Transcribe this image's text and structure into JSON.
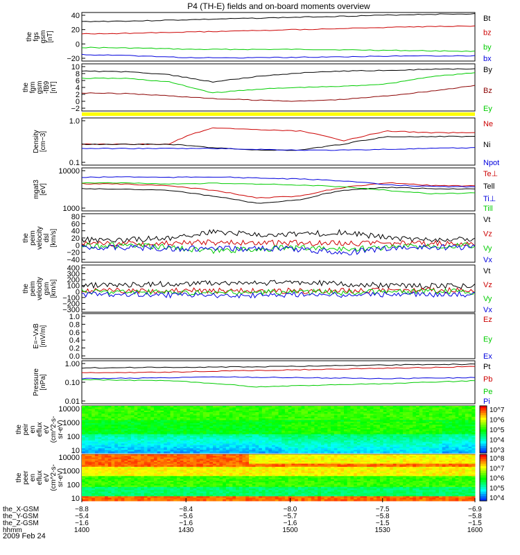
{
  "title": "P4 (TH-E) fields and on-board moments overview",
  "date_label": "2009 Feb 24",
  "colors": {
    "black": "#000000",
    "red": "#cc0000",
    "green": "#00cc00",
    "blue": "#0000dd",
    "darkred": "#8b0000",
    "yellow": "#ffff00"
  },
  "chart_data": [
    {
      "id": "fgs",
      "type": "line",
      "ylabel": [
        "the",
        "fgs",
        "gsm",
        "[nT]"
      ],
      "yticks": [
        "40",
        "20",
        "0",
        "−20"
      ],
      "ylim": [
        -30,
        45
      ],
      "series": [
        {
          "name": "Bt",
          "color": "black",
          "values": [
            31,
            32,
            34,
            36,
            38,
            40,
            42,
            43
          ]
        },
        {
          "name": "bz",
          "color": "red",
          "values": [
            12,
            13,
            15,
            17,
            19,
            21,
            23,
            24
          ]
        },
        {
          "name": "by",
          "color": "green",
          "values": [
            -9,
            -10,
            -12,
            -12,
            -12,
            -13,
            -14,
            -15
          ]
        },
        {
          "name": "bx",
          "color": "blue",
          "values": [
            -20,
            -22,
            -25,
            -25,
            -24,
            -23,
            -22,
            -22
          ]
        }
      ]
    },
    {
      "id": "fgm",
      "type": "line",
      "ylabel": [
        "the",
        "fgm",
        "gsm",
        "-fB9",
        "[nT]"
      ],
      "yticks": [
        "10",
        "8",
        "6",
        "4",
        "2",
        "0",
        "−2"
      ],
      "ylim": [
        -3,
        10
      ],
      "series": [
        {
          "name": "By",
          "color": "black",
          "values": [
            8,
            7.8,
            7,
            5,
            6.5,
            7.5,
            8,
            8.2,
            8.5,
            8.6
          ]
        },
        {
          "name": "Bz",
          "color": "darkred",
          "values": [
            2,
            1.8,
            1.2,
            0.4,
            0,
            -0.3,
            0.2,
            1.2,
            2.5,
            4
          ]
        },
        {
          "name": "Ey",
          "color": "green",
          "values": [
            6,
            6,
            5,
            2,
            3,
            3.5,
            3.8,
            4.5,
            6.5,
            7.5
          ]
        }
      ]
    },
    {
      "id": "density",
      "type": "line",
      "yscale": "log",
      "ylabel": [
        "Density",
        "[cm−3]"
      ],
      "yticks": [
        "1.0",
        "0.1"
      ],
      "ylim": [
        0.1,
        1.2
      ],
      "series": [
        {
          "name": "Ne",
          "color": "red",
          "values": [
            0.3,
            0.3,
            0.3,
            0.7,
            0.65,
            0.6,
            0.35,
            0.6,
            0.55,
            0.55
          ]
        },
        {
          "name": "Ni",
          "color": "black",
          "values": [
            0.3,
            0.3,
            0.3,
            0.25,
            0.22,
            0.22,
            0.3,
            0.45,
            0.45,
            0.45
          ]
        },
        {
          "name": "Npot",
          "color": "blue",
          "values": [
            0.24,
            0.24,
            0.24,
            0.24,
            0.23,
            0.22,
            0.22,
            0.23,
            0.24,
            0.25
          ]
        }
      ]
    },
    {
      "id": "temperature",
      "type": "line",
      "yscale": "log",
      "ylabel": [
        "mgat3",
        "[eV]"
      ],
      "yticks": [
        "10000",
        "1000"
      ],
      "ylim": [
        1000,
        10000
      ],
      "series": [
        {
          "name": "Te⊥",
          "color": "red",
          "values": [
            4300,
            4200,
            3800,
            3000,
            2000,
            2200,
            3500,
            4500,
            3900,
            3800
          ]
        },
        {
          "name": "Tell",
          "color": "black",
          "values": [
            3300,
            3200,
            3000,
            2200,
            1500,
            1800,
            3000,
            3500,
            3300,
            3200
          ]
        },
        {
          "name": "Ti⊥",
          "color": "blue",
          "values": [
            6000,
            6200,
            6000,
            6200,
            5800,
            5500,
            5000,
            4000,
            3700,
            3600
          ]
        },
        {
          "name": "Till",
          "color": "green",
          "values": [
            4500,
            4500,
            4200,
            4400,
            4200,
            4000,
            3600,
            3000,
            2500,
            2600
          ]
        }
      ]
    },
    {
      "id": "peim_dsl",
      "type": "line",
      "ylabel": [
        "the",
        "peim",
        "velocity",
        "dsl",
        "[km/s]"
      ],
      "yticks": [
        "80",
        "60",
        "40",
        "20",
        "0",
        "−20",
        "−40"
      ],
      "ylim": [
        -45,
        85
      ],
      "series": [
        {
          "name": "Vt",
          "color": "black",
          "values": [
            15,
            16,
            20,
            35,
            30,
            30,
            35,
            20,
            15,
            15
          ]
        },
        {
          "name": "Vz",
          "color": "red",
          "values": [
            5,
            5,
            6,
            8,
            7,
            6,
            6,
            5,
            5,
            5
          ]
        },
        {
          "name": "Vy",
          "color": "green",
          "values": [
            0,
            0,
            -5,
            -15,
            -10,
            -5,
            -10,
            -5,
            0,
            0
          ]
        },
        {
          "name": "Vx",
          "color": "blue",
          "values": [
            -5,
            -5,
            -8,
            -10,
            -8,
            -10,
            -20,
            -8,
            -5,
            -5
          ]
        }
      ]
    },
    {
      "id": "peim_gsm",
      "type": "line",
      "ylabel": [
        "the",
        "peim",
        "velocity",
        "gsm",
        "[km/s]"
      ],
      "yticks": [
        "400",
        "300",
        "200",
        "100",
        "0",
        "−100",
        "−200",
        "−300"
      ],
      "ylim": [
        -320,
        420
      ],
      "series": [
        {
          "name": "Vt",
          "color": "black",
          "values": [
            100,
            110,
            120,
            140,
            130,
            150,
            120,
            100,
            90,
            90
          ]
        },
        {
          "name": "Vz",
          "color": "red",
          "values": [
            20,
            20,
            15,
            20,
            10,
            15,
            10,
            20,
            20,
            20
          ]
        },
        {
          "name": "Vy",
          "color": "green",
          "values": [
            0,
            0,
            -10,
            -20,
            -10,
            0,
            -10,
            0,
            0,
            0
          ]
        },
        {
          "name": "Vx",
          "color": "blue",
          "values": [
            -40,
            -40,
            -50,
            -60,
            -50,
            -40,
            -50,
            -40,
            -40,
            -40
          ]
        }
      ]
    },
    {
      "id": "efield",
      "type": "line",
      "ylabel": [
        "E=−VxB",
        "[mV/m]"
      ],
      "yticks": [
        "1.0",
        "0.8",
        "0.6",
        "0.4",
        "0.2",
        "0.0"
      ],
      "ylim": [
        0,
        1
      ],
      "series": [
        {
          "name": "Ez",
          "color": "red",
          "values": []
        },
        {
          "name": "Ey",
          "color": "green",
          "values": []
        },
        {
          "name": "Ex",
          "color": "blue",
          "values": []
        }
      ]
    },
    {
      "id": "pressure",
      "type": "line",
      "yscale": "log",
      "ylabel": [
        "Pressure",
        "[nPa]"
      ],
      "yticks": [
        "1.00",
        "0.10",
        "0.01"
      ],
      "ylim": [
        0.01,
        1.4
      ],
      "series": [
        {
          "name": "Pt",
          "color": "black",
          "values": [
            0.62,
            0.64,
            0.66,
            0.68,
            0.7,
            0.74,
            0.8,
            0.86,
            0.9,
            0.95
          ]
        },
        {
          "name": "Pb",
          "color": "red",
          "values": [
            0.35,
            0.36,
            0.38,
            0.42,
            0.46,
            0.5,
            0.55,
            0.6,
            0.65,
            0.72
          ]
        },
        {
          "name": "Pe",
          "color": "green",
          "values": [
            0.16,
            0.15,
            0.14,
            0.1,
            0.07,
            0.08,
            0.09,
            0.1,
            0.12,
            0.14
          ]
        },
        {
          "name": "Pi",
          "color": "blue",
          "values": [
            0.18,
            0.19,
            0.2,
            0.22,
            0.21,
            0.2,
            0.19,
            0.18,
            0.19,
            0.2
          ]
        }
      ]
    },
    {
      "id": "peir",
      "type": "heatmap",
      "yscale": "log",
      "ylabel": [
        "the",
        "peir",
        "en",
        "eflux",
        "eV",
        "(cm^2-s-",
        "sr-eV)"
      ],
      "yticks": [
        "10000",
        "1000",
        "100",
        "10"
      ],
      "ylim": [
        5,
        25000
      ],
      "colorbar_ticks": [
        "10^7",
        "10^6",
        "10^5",
        "10^4",
        "10^3"
      ]
    },
    {
      "id": "peer",
      "type": "heatmap",
      "yscale": "log",
      "ylabel": [
        "the",
        "peer",
        "en",
        "eflux",
        "eV",
        "(cm^2-s-",
        "sr-eV)"
      ],
      "yticks": [
        "10000",
        "1000",
        "100",
        "10"
      ],
      "ylim": [
        5,
        25000
      ],
      "colorbar_ticks": [
        "10^8",
        "10^7",
        "10^6",
        "10^5",
        "10^4"
      ]
    }
  ],
  "time_axis": {
    "rows": [
      {
        "label": "the_X-GSM",
        "values": [
          "−8.8",
          "−8.4",
          "−8.0",
          "−7.5",
          "−6.9"
        ]
      },
      {
        "label": "the_Y-GSM",
        "values": [
          "−5.4",
          "−5.6",
          "−5.7",
          "−5.8",
          "−5.8"
        ]
      },
      {
        "label": "the_Z-GSM",
        "values": [
          "−1.6",
          "−1.6",
          "−1.6",
          "−1.5",
          "−1.5"
        ]
      },
      {
        "label": "hhmm",
        "values": [
          "1400",
          "1430",
          "1500",
          "1530",
          "1600"
        ]
      }
    ]
  }
}
